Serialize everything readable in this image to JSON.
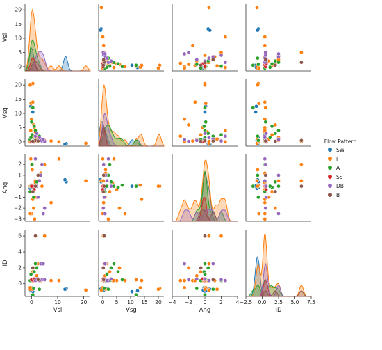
{
  "chart_data": {
    "type": "scatter",
    "layout": "pairplot",
    "variables": [
      "Vsl",
      "Vsg",
      "Ang",
      "ID"
    ],
    "legend": {
      "title": "Flow Pattern",
      "placement": "right",
      "entries": [
        {
          "name": "SW",
          "color": "#1f77b4"
        },
        {
          "name": "I",
          "color": "#ff7f0e"
        },
        {
          "name": "A",
          "color": "#2ca02c"
        },
        {
          "name": "SS",
          "color": "#d62728"
        },
        {
          "name": "DB",
          "color": "#9467bd"
        },
        {
          "name": "B",
          "color": "#8c564b"
        }
      ]
    },
    "axes": {
      "Vsl": {
        "label": "Vsl",
        "range": [
          -2.5,
          22.5
        ],
        "ticks": [
          0,
          10,
          20
        ],
        "tick_labels": [
          "0",
          "10",
          "20"
        ]
      },
      "Vsg": {
        "label": "Vsg",
        "range": [
          -1.5,
          22
        ],
        "ticks": [
          0,
          5,
          10,
          15,
          20
        ],
        "tick_labels": [
          "0",
          "5",
          "10",
          "15",
          "20"
        ]
      },
      "Ang": {
        "label": "Ang",
        "range": [
          -4,
          4
        ],
        "ticks": [
          -4,
          -2,
          0,
          2,
          4
        ],
        "tick_labels": [
          "−4",
          "−2",
          "0",
          "2",
          "4"
        ]
      },
      "ID": {
        "label": "ID",
        "range": [
          -2.5,
          7.5
        ],
        "ticks": [
          -2.5,
          0,
          2.5,
          5,
          7.5
        ],
        "tick_labels": [
          "−2.5",
          "0.0",
          "2.5",
          "5.0",
          "7.5"
        ],
        "y_ticks": [
          0,
          2,
          4,
          6
        ],
        "y_tick_labels": [
          "0",
          "2",
          "4",
          "6"
        ],
        "y_range": [
          -1.6,
          6.8
        ]
      }
    },
    "y_axes": {
      "Vsl": {
        "range": [
          -1.5,
          22
        ],
        "ticks": [
          0,
          5,
          10,
          15,
          20
        ],
        "tick_labels": [
          "0",
          "5",
          "10",
          "15",
          "20"
        ]
      },
      "Vsg": {
        "range": [
          -1.5,
          22
        ],
        "ticks": [
          0,
          5,
          10,
          15,
          20
        ],
        "tick_labels": [
          "0",
          "5",
          "10",
          "15",
          "20"
        ]
      },
      "Ang": {
        "range": [
          -3.2,
          2.9
        ],
        "ticks": [
          -3,
          -2,
          -1,
          0,
          1,
          2
        ],
        "tick_labels": [
          "−3",
          "−2",
          "−1",
          "0",
          "1",
          "2"
        ]
      },
      "ID": {
        "range": [
          -1.6,
          6.8
        ],
        "ticks": [
          0,
          2,
          4,
          6
        ],
        "tick_labels": [
          "0",
          "2",
          "4",
          "6"
        ]
      }
    },
    "points": [
      {
        "Vsl": 13.0,
        "Vsg": -0.7,
        "Ang": 0.5,
        "ID": -0.7,
        "pattern": "SW"
      },
      {
        "Vsl": 13.3,
        "Vsg": -0.6,
        "Ang": 0.4,
        "ID": -0.6,
        "pattern": "SW"
      },
      {
        "Vsl": 12.8,
        "Vsg": -0.8,
        "Ang": 0.6,
        "ID": -0.7,
        "pattern": "SW"
      },
      {
        "Vsl": 0.5,
        "Vsg": 10.5,
        "Ang": 0.0,
        "ID": -1.0,
        "pattern": "SW"
      },
      {
        "Vsl": -0.5,
        "Vsg": 0.5,
        "Ang": -0.2,
        "ID": -0.8,
        "pattern": "SW"
      },
      {
        "Vsl": 0.2,
        "Vsg": 1.5,
        "Ang": 0.0,
        "ID": -0.6,
        "pattern": "SW"
      },
      {
        "Vsl": -0.3,
        "Vsg": 12.5,
        "Ang": 0.1,
        "ID": -0.9,
        "pattern": "SW"
      },
      {
        "Vsl": 0.3,
        "Vsg": 0.2,
        "Ang": -0.1,
        "ID": -0.5,
        "pattern": "SW"
      },
      {
        "Vsl": 20.8,
        "Vsg": -0.5,
        "Ang": 0.5,
        "ID": -0.8,
        "pattern": "I"
      },
      {
        "Vsl": 0.5,
        "Vsg": 20.5,
        "Ang": 0.0,
        "ID": -0.6,
        "pattern": "I"
      },
      {
        "Vsl": -0.2,
        "Vsg": 13.5,
        "Ang": 0.1,
        "ID": -0.5,
        "pattern": "I"
      },
      {
        "Vsl": 0.2,
        "Vsg": 12.0,
        "Ang": 0.0,
        "ID": 0.5,
        "pattern": "I"
      },
      {
        "Vsl": 1.0,
        "Vsg": 5.0,
        "Ang": -0.3,
        "ID": 0.4,
        "pattern": "I"
      },
      {
        "Vsl": 1.5,
        "Vsg": 3.5,
        "Ang": 0.3,
        "ID": 0.4,
        "pattern": "I"
      },
      {
        "Vsl": 0.5,
        "Vsg": 2.5,
        "Ang": -0.5,
        "ID": 1.5,
        "pattern": "I"
      },
      {
        "Vsl": 2.5,
        "Vsg": 1.5,
        "Ang": 0.5,
        "ID": 2.5,
        "pattern": "I"
      },
      {
        "Vsl": 3.5,
        "Vsg": 1.0,
        "Ang": 1.2,
        "ID": 0.4,
        "pattern": "I"
      },
      {
        "Vsl": 5.0,
        "Vsg": 0.5,
        "Ang": 2.0,
        "ID": 6.0,
        "pattern": "I"
      },
      {
        "Vsl": 7.5,
        "Vsg": 0.3,
        "Ang": -1.5,
        "ID": 0.4,
        "pattern": "I"
      },
      {
        "Vsl": 10.5,
        "Vsg": 0.0,
        "Ang": 2.5,
        "ID": 0.4,
        "pattern": "I"
      },
      {
        "Vsl": -0.5,
        "Vsg": 20.0,
        "Ang": 0.0,
        "ID": -0.7,
        "pattern": "I"
      },
      {
        "Vsl": 0.0,
        "Vsg": 8.0,
        "Ang": -2.5,
        "ID": 0.4,
        "pattern": "I"
      },
      {
        "Vsl": 0.8,
        "Vsg": 6.0,
        "Ang": -2.0,
        "ID": 2.0,
        "pattern": "I"
      },
      {
        "Vsl": -0.3,
        "Vsg": 4.0,
        "Ang": 2.5,
        "ID": 0.4,
        "pattern": "I"
      },
      {
        "Vsl": 1.2,
        "Vsg": 2.0,
        "Ang": -3.0,
        "ID": 0.4,
        "pattern": "I"
      },
      {
        "Vsl": 0.3,
        "Vsg": 1.0,
        "Ang": 1.5,
        "ID": -0.7,
        "pattern": "I"
      },
      {
        "Vsl": 2.0,
        "Vsg": 0.8,
        "Ang": -1.0,
        "ID": 1.0,
        "pattern": "I"
      },
      {
        "Vsl": 4.0,
        "Vsg": 0.5,
        "Ang": 0.0,
        "ID": 2.5,
        "pattern": "I"
      },
      {
        "Vsl": 0.0,
        "Vsg": 0.3,
        "Ang": 2.0,
        "ID": 0.4,
        "pattern": "I"
      },
      {
        "Vsl": -0.5,
        "Vsg": 0.0,
        "Ang": -2.5,
        "ID": -0.5,
        "pattern": "I"
      },
      {
        "Vsl": 0.5,
        "Vsg": 14.0,
        "Ang": -1.2,
        "ID": 0.4,
        "pattern": "I"
      },
      {
        "Vsl": 1.5,
        "Vsg": 0.2,
        "Ang": 0.5,
        "ID": 6.0,
        "pattern": "I"
      },
      {
        "Vsl": 0.5,
        "Vsg": 12.0,
        "Ang": 0.0,
        "ID": -1.4,
        "pattern": "A"
      },
      {
        "Vsl": 0.0,
        "Vsg": 7.0,
        "Ang": 0.1,
        "ID": 0.5,
        "pattern": "A"
      },
      {
        "Vsl": 1.0,
        "Vsg": 5.5,
        "Ang": -0.1,
        "ID": 1.5,
        "pattern": "A"
      },
      {
        "Vsl": 2.0,
        "Vsg": 3.0,
        "Ang": 0.4,
        "ID": 2.0,
        "pattern": "A"
      },
      {
        "Vsl": 3.0,
        "Vsg": 2.0,
        "Ang": 1.0,
        "ID": -0.7,
        "pattern": "A"
      },
      {
        "Vsl": -0.5,
        "Vsg": 0.8,
        "Ang": -0.5,
        "ID": 0.4,
        "pattern": "A"
      },
      {
        "Vsl": 0.2,
        "Vsg": 2.5,
        "Ang": 2.0,
        "ID": 0.4,
        "pattern": "A"
      },
      {
        "Vsl": 1.5,
        "Vsg": 4.0,
        "Ang": 0.0,
        "ID": 2.5,
        "pattern": "A"
      },
      {
        "Vsl": 0.8,
        "Vsg": 0.5,
        "Ang": -1.0,
        "ID": -0.6,
        "pattern": "A"
      },
      {
        "Vsl": -0.2,
        "Vsg": 1.5,
        "Ang": 0.0,
        "ID": 1.2,
        "pattern": "A"
      },
      {
        "Vsl": 0.5,
        "Vsg": 0.3,
        "Ang": 0.0,
        "ID": 0.4,
        "pattern": "SS"
      },
      {
        "Vsl": 0.0,
        "Vsg": 0.1,
        "Ang": 0.0,
        "ID": 0.5,
        "pattern": "SS"
      },
      {
        "Vsl": 1.0,
        "Vsg": 0.0,
        "Ang": -0.3,
        "ID": 0.6,
        "pattern": "SS"
      },
      {
        "Vsl": 4.0,
        "Vsg": 0.3,
        "Ang": 2.0,
        "ID": 0.5,
        "pattern": "DB"
      },
      {
        "Vsl": 2.5,
        "Vsg": 0.5,
        "Ang": -1.0,
        "ID": 0.6,
        "pattern": "DB"
      },
      {
        "Vsl": 3.5,
        "Vsg": 1.0,
        "Ang": 1.0,
        "ID": 2.5,
        "pattern": "DB"
      },
      {
        "Vsl": 1.5,
        "Vsg": 2.0,
        "Ang": 2.5,
        "ID": 0.4,
        "pattern": "DB"
      },
      {
        "Vsl": 5.0,
        "Vsg": 0.2,
        "Ang": -2.0,
        "ID": 0.5,
        "pattern": "DB"
      },
      {
        "Vsl": 2.0,
        "Vsg": 3.0,
        "Ang": 0.0,
        "ID": 0.6,
        "pattern": "DB"
      },
      {
        "Vsl": 4.5,
        "Vsg": 0.8,
        "Ang": -2.5,
        "ID": 2.5,
        "pattern": "DB"
      },
      {
        "Vsl": 3.0,
        "Vsg": 1.5,
        "Ang": 0.5,
        "ID": 0.4,
        "pattern": "DB"
      },
      {
        "Vsl": 1.5,
        "Vsg": 0.5,
        "Ang": 0.0,
        "ID": 6.0,
        "pattern": "B"
      },
      {
        "Vsl": 2.5,
        "Vsg": 0.3,
        "Ang": 1.0,
        "ID": 0.5,
        "pattern": "B"
      },
      {
        "Vsl": 0.5,
        "Vsg": 0.2,
        "Ang": -0.5,
        "ID": 2.0,
        "pattern": "B"
      }
    ],
    "grid": false
  }
}
